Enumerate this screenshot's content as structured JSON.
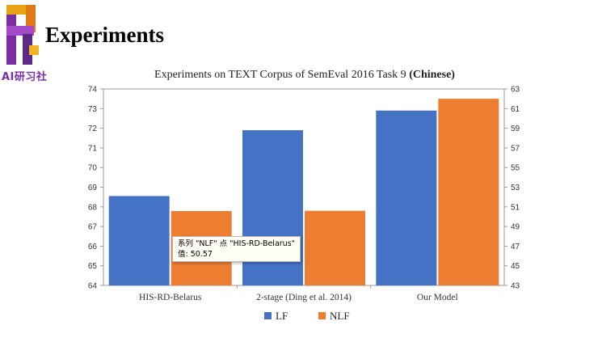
{
  "slide": {
    "title": "Experiments",
    "logo_text": "AI研习社"
  },
  "chart_data": {
    "type": "bar",
    "title": "Experiments on TEXT Corpus of SemEval 2016 Task 9 ",
    "title_bold": "(Chinese)",
    "categories": [
      "HIS-RD-Belarus",
      "2-stage (Ding et al. 2014)",
      "Our Model"
    ],
    "series": [
      {
        "name": "LF",
        "axis": "left",
        "color": "#4472c4",
        "values": [
          68.55,
          71.9,
          72.9
        ]
      },
      {
        "name": "NLF",
        "axis": "right",
        "color": "#ed7d31",
        "values": [
          50.57,
          50.6,
          62.0
        ]
      }
    ],
    "y_left": {
      "min": 64,
      "max": 74,
      "step": 1,
      "ticks": [
        "64",
        "65",
        "66",
        "67",
        "68",
        "69",
        "70",
        "71",
        "72",
        "73",
        "74"
      ]
    },
    "y_right": {
      "min": 43,
      "max": 63,
      "step": 2,
      "ticks": [
        "43",
        "45",
        "47",
        "49",
        "51",
        "53",
        "55",
        "57",
        "59",
        "61",
        "63"
      ]
    },
    "legend": [
      "LF",
      "NLF"
    ],
    "legend_position": "bottom",
    "grid": false
  },
  "tooltip": {
    "line1": "系列 \"NLF\" 点 \"HIS-RD-Belarus\"",
    "line2": "值: 50.57"
  }
}
